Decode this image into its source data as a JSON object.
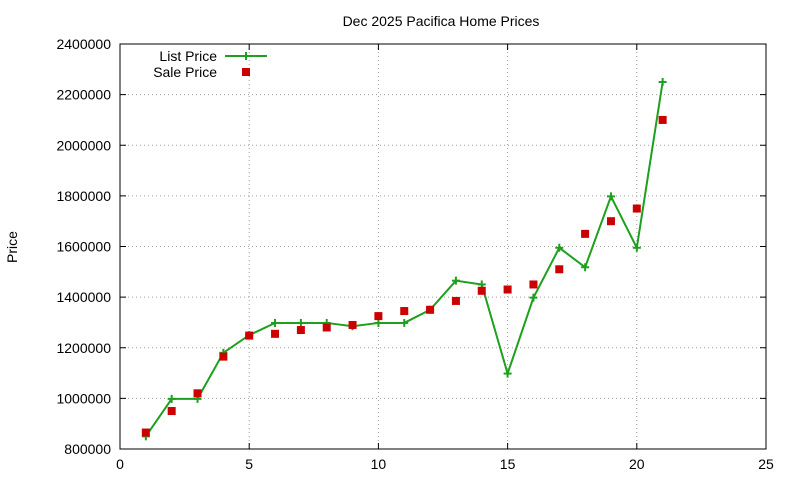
{
  "chart_data": {
    "type": "line",
    "title": "Dec 2025 Pacifica Home Prices",
    "xlabel": "",
    "ylabel": "Price",
    "xlim": [
      0,
      25
    ],
    "ylim": [
      800000,
      2400000
    ],
    "x_ticks": [
      "0",
      "5",
      "10",
      "15",
      "20",
      "25"
    ],
    "x_tick_values": [
      0,
      5,
      10,
      15,
      20,
      25
    ],
    "y_ticks": [
      "800000",
      "1000000",
      "1200000",
      "1400000",
      "1600000",
      "1800000",
      "2000000",
      "2200000",
      "2400000"
    ],
    "y_tick_values": [
      800000,
      1000000,
      1200000,
      1400000,
      1600000,
      1800000,
      2000000,
      2200000,
      2400000
    ],
    "grid": true,
    "legend_position": "top-left",
    "series": [
      {
        "name": "List Price",
        "style": "line-with-plus-markers",
        "color": "#1ea01e",
        "x": [
          1,
          2,
          3,
          4,
          5,
          6,
          7,
          8,
          9,
          10,
          11,
          12,
          13,
          14,
          15,
          16,
          17,
          18,
          19,
          20,
          21
        ],
        "values": [
          850000,
          998000,
          998000,
          1180000,
          1250000,
          1298000,
          1298000,
          1298000,
          1285000,
          1298000,
          1298000,
          1350000,
          1465000,
          1450000,
          1098000,
          1398000,
          1595000,
          1518000,
          1798000,
          1595000,
          2250000
        ]
      },
      {
        "name": "Sale Price",
        "style": "square-markers",
        "color": "#cc0000",
        "x": [
          1,
          2,
          3,
          4,
          5,
          6,
          7,
          8,
          9,
          10,
          11,
          12,
          13,
          14,
          15,
          16,
          17,
          18,
          19,
          20,
          21
        ],
        "values": [
          865000,
          950000,
          1020000,
          1165000,
          1248000,
          1255000,
          1270000,
          1280000,
          1290000,
          1325000,
          1345000,
          1350000,
          1385000,
          1425000,
          1430000,
          1450000,
          1510000,
          1650000,
          1700000,
          1750000,
          2100000
        ]
      }
    ]
  }
}
